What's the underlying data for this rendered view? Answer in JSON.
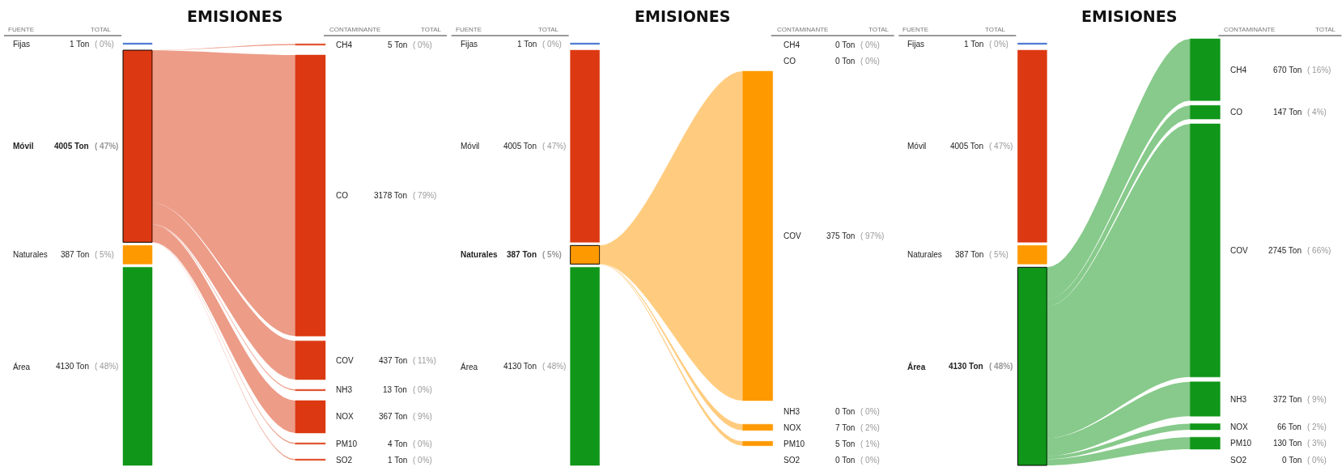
{
  "chart_data": [
    {
      "type": "other",
      "title": "EMISIONES",
      "annotations": [
        "FUENTE",
        "TOTAL"
      ],
      "categories": [
        "Fijas",
        "Móvil",
        "Naturales",
        "Área"
      ],
      "values": [
        1,
        4005,
        387,
        4130
      ],
      "value_labels": [
        "1 Ton ( 0%)",
        "4005 Ton ( 47%)",
        "387 Ton ( 5%)",
        "4130 Ton ( 48%)"
      ],
      "colors": [
        "#3366cc",
        "#dc3912",
        "#ff9900",
        "#109618"
      ]
    },
    {
      "type": "other",
      "annotations": [
        "CONTAMINANTE",
        "TOTAL"
      ],
      "categories": [
        "CH4",
        "CO",
        "COV",
        "NH3",
        "NOX",
        "PM10",
        "SO2"
      ],
      "values": [
        5,
        3178,
        437,
        13,
        367,
        4,
        1
      ],
      "value_labels": [
        "5 Ton ( 0%)",
        "3178 Ton ( 79%)",
        "437 Ton ( 11%)",
        "13 Ton ( 0%)",
        "367 Ton ( 9%)",
        "4 Ton ( 0%)",
        "1 Ton ( 0%)"
      ],
      "color": "#dc3912"
    },
    {
      "type": "other",
      "title": "EMISIONES",
      "annotations": [
        "FUENTE",
        "TOTAL"
      ],
      "categories": [
        "Fijas",
        "Móvil",
        "Naturales",
        "Área"
      ],
      "values": [
        1,
        4005,
        387,
        4130
      ],
      "value_labels": [
        "1 Ton ( 0%)",
        "4005 Ton ( 47%)",
        "387 Ton ( 5%)",
        "4130 Ton ( 48%)"
      ],
      "colors": [
        "#3366cc",
        "#dc3912",
        "#ff9900",
        "#109618"
      ]
    },
    {
      "type": "other",
      "annotations": [
        "CONTAMINANTE",
        "TOTAL"
      ],
      "categories": [
        "CH4",
        "CO",
        "COV",
        "NH3",
        "NOX",
        "PM10",
        "SO2"
      ],
      "values": [
        0,
        0,
        375,
        0,
        7,
        5,
        0
      ],
      "value_labels": [
        "0 Ton ( 0%)",
        "0 Ton ( 0%)",
        "375 Ton ( 97%)",
        "0 Ton ( 0%)",
        "7 Ton ( 2%)",
        "5 Ton ( 1%)",
        "0 Ton ( 0%)"
      ],
      "color": "#ff9900"
    },
    {
      "type": "other",
      "title": "EMISIONES",
      "annotations": [
        "FUENTE",
        "TOTAL"
      ],
      "categories": [
        "Fijas",
        "Móvil",
        "Naturales",
        "Área"
      ],
      "values": [
        1,
        4005,
        387,
        4130
      ],
      "value_labels": [
        "1 Ton ( 0%)",
        "4005 Ton ( 47%)",
        "387 Ton ( 5%)",
        "4130 Ton ( 48%)"
      ],
      "colors": [
        "#3366cc",
        "#dc3912",
        "#ff9900",
        "#109618"
      ]
    },
    {
      "type": "other",
      "annotations": [
        "CONTAMINANTE",
        "TOTAL"
      ],
      "categories": [
        "CH4",
        "CO",
        "COV",
        "NH3",
        "NOX",
        "PM10",
        "SO2"
      ],
      "values": [
        670,
        147,
        2745,
        372,
        66,
        130,
        0
      ],
      "value_labels": [
        "670 Ton ( 16%)",
        "147 Ton ( 4%)",
        "2745 Ton ( 66%)",
        "372 Ton ( 9%)",
        "66 Ton ( 2%)",
        "130 Ton ( 3%)",
        "0 Ton ( 0%)"
      ],
      "color": "#109618"
    }
  ]
}
